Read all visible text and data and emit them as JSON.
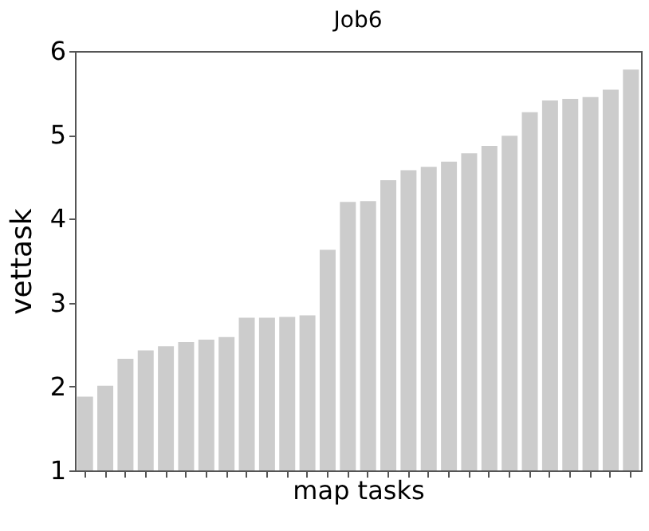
{
  "chart_data": {
    "type": "bar",
    "title": "Job6",
    "xlabel": "map tasks",
    "ylabel": "vettask",
    "categories": [
      null,
      null,
      null,
      null,
      null,
      null,
      null,
      null,
      null,
      null,
      null,
      null,
      null,
      null,
      null,
      null,
      null,
      null,
      null,
      null,
      null,
      null,
      null,
      null,
      null,
      null,
      null,
      null
    ],
    "values": [
      1.88,
      2.01,
      2.33,
      2.43,
      2.48,
      2.53,
      2.56,
      2.59,
      2.82,
      2.82,
      2.83,
      2.85,
      3.63,
      4.2,
      4.21,
      4.46,
      4.58,
      4.62,
      4.68,
      4.78,
      4.87,
      4.99,
      5.27,
      5.41,
      5.43,
      5.45,
      5.54,
      5.78
    ],
    "color": "#cccccc",
    "ylim": [
      1,
      6
    ],
    "yticks": [
      1,
      2,
      3,
      4,
      5,
      6
    ],
    "grid": false,
    "tick_labels": "y"
  }
}
